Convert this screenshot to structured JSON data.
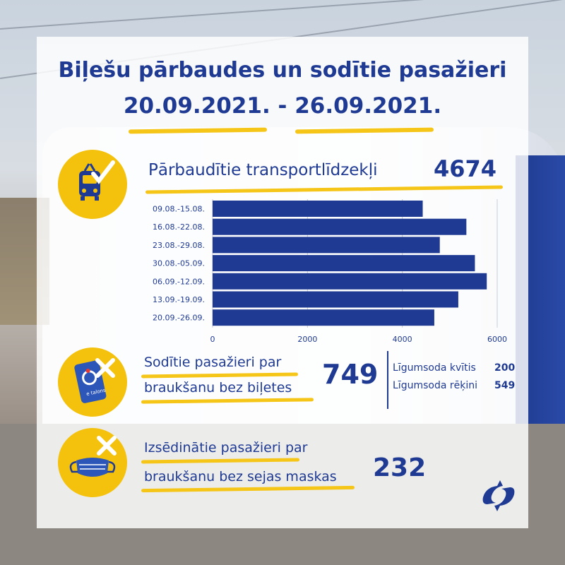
{
  "header": {
    "title": "Biļešu pārbaudes un sodītie pasažieri",
    "period": "20.09.2021. - 26.09.2021."
  },
  "vehicles": {
    "label": "Pārbaudītie transportlīdzekļi",
    "value": "4674",
    "icon": "bus-check-icon"
  },
  "fined": {
    "line1": "Sodītie pasažieri par",
    "line2": "braukšanu bez biļetes",
    "value": "749",
    "icon": "e-talons-card-x-icon",
    "card_text": "e talons",
    "breakdown": [
      {
        "label": "Līgumsoda kvītis",
        "value": "200"
      },
      {
        "label": "Līgumsoda rēķini",
        "value": "549"
      }
    ]
  },
  "masks": {
    "line1": "Izsēdinātie pasažieri par",
    "line2": "braukšanu bez sejas maskas",
    "value": "232",
    "icon": "face-mask-x-icon"
  },
  "colors": {
    "primary": "#1f3a93",
    "bar": "#1f3a93",
    "accent": "#f4c20d"
  },
  "chart_data": {
    "type": "bar",
    "orientation": "horizontal",
    "categories": [
      "09.08.-15.08.",
      "16.08.-22.08.",
      "23.08.-29.08.",
      "30.08.-05.09.",
      "06.09.-12.09.",
      "13.09.-19.09.",
      "20.09.-26.09."
    ],
    "values": [
      4430,
      5350,
      4790,
      5530,
      5780,
      5180,
      4674
    ],
    "xlim": [
      0,
      6000
    ],
    "xticks": [
      "0",
      "2000",
      "4000",
      "6000"
    ],
    "grid": true
  }
}
